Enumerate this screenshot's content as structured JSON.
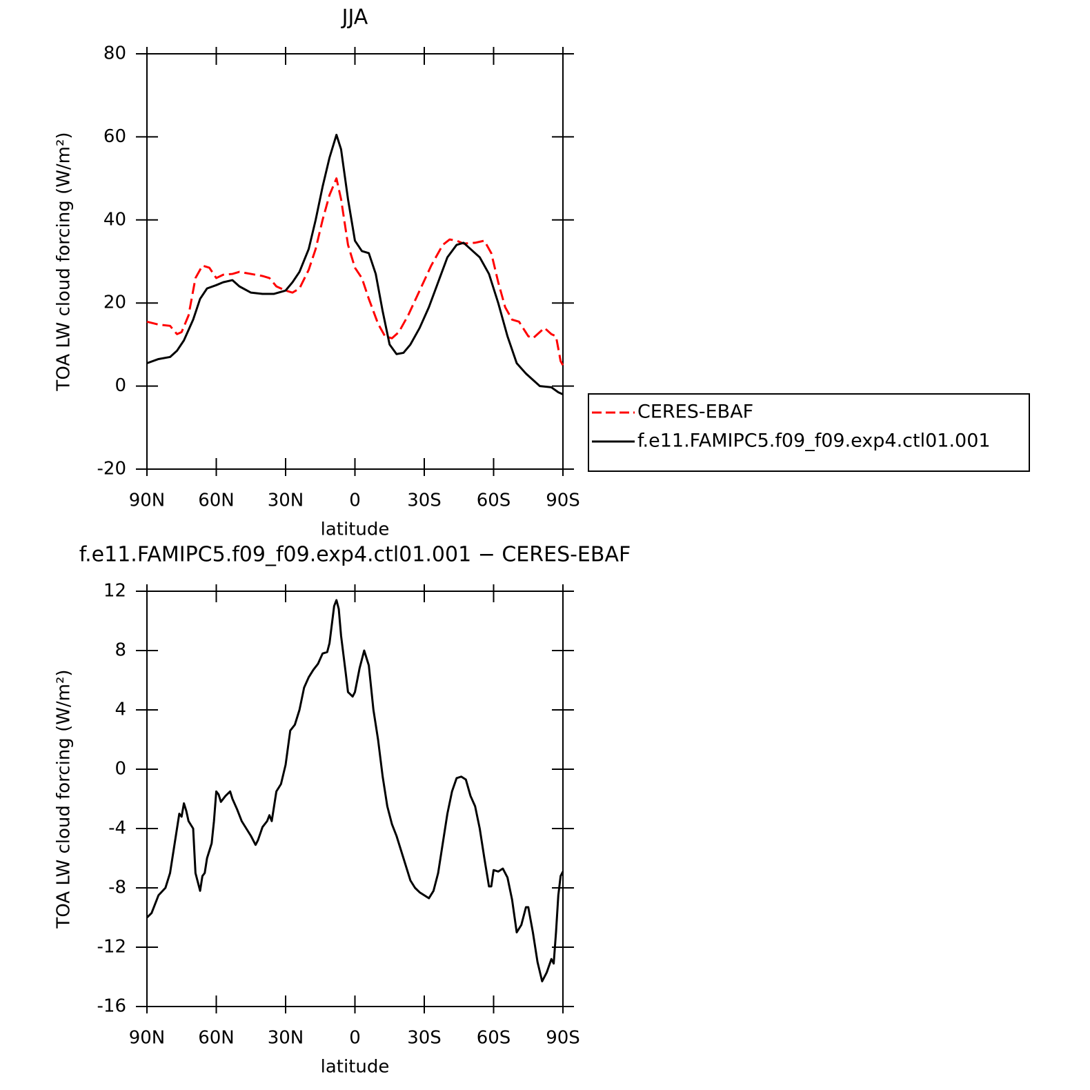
{
  "chart_data": [
    {
      "type": "line",
      "title": "JJA",
      "xlabel": "latitude",
      "ylabel": "TOA LW cloud forcing (W/m²)",
      "xlim": [
        90,
        -90
      ],
      "xticks": [
        {
          "value": 90,
          "label": "90N"
        },
        {
          "value": 60,
          "label": "60N"
        },
        {
          "value": 30,
          "label": "30N"
        },
        0,
        {
          "value": -30,
          "label": "30S"
        },
        {
          "value": -60,
          "label": "60S"
        },
        {
          "value": -90,
          "label": "90S"
        }
      ],
      "ylim": [
        -20,
        80
      ],
      "yticks": [
        -20,
        0,
        20,
        40,
        60,
        80
      ],
      "legend": "right",
      "series": [
        {
          "name": "CERES-EBAF",
          "color": "#ff0000",
          "dashed": true,
          "x": [
            90,
            85,
            80,
            77,
            75,
            72,
            69,
            66,
            63,
            60,
            57,
            53,
            50,
            45,
            40,
            37,
            34,
            30,
            27,
            24,
            20,
            17,
            14,
            11,
            8,
            6,
            3,
            0,
            -3,
            -6,
            -10,
            -13,
            -16,
            -19,
            -23,
            -28,
            -33,
            -38,
            -41,
            -44,
            -47,
            -52,
            -56,
            -59,
            -62,
            -65,
            -68,
            -71,
            -75,
            -77,
            -80,
            -82,
            -85,
            -87,
            -89,
            -90
          ],
          "values": [
            15.5,
            14.8,
            14.5,
            12.5,
            13,
            17,
            26,
            29,
            28.5,
            26,
            26.8,
            27,
            27.5,
            27,
            26.5,
            26,
            24,
            23,
            22.5,
            23.5,
            28,
            33,
            40,
            46,
            50,
            45,
            34,
            28.5,
            26,
            21,
            15,
            12,
            11.5,
            13,
            17,
            23,
            29,
            34,
            35.3,
            35,
            34.3,
            34.5,
            35,
            32,
            25,
            19,
            16,
            15.5,
            12,
            11.5,
            13,
            14,
            12.5,
            12,
            6,
            5
          ]
        },
        {
          "name": "f.e11.FAMIPC5.f09_f09.exp4.ctl01.001",
          "color": "#000000",
          "dashed": false,
          "x": [
            90,
            85,
            80,
            77,
            74,
            70,
            67,
            64,
            60,
            57,
            53,
            50,
            45,
            40,
            35,
            30,
            27,
            24,
            20,
            17,
            14,
            11,
            8,
            6,
            3,
            0,
            -3,
            -6,
            -9,
            -12,
            -15,
            -18,
            -21,
            -24,
            -28,
            -32,
            -36,
            -40,
            -44,
            -47,
            -50,
            -54,
            -58,
            -62,
            -66,
            -70,
            -74,
            -78,
            -80,
            -85,
            -88,
            -90
          ],
          "values": [
            5.5,
            6.5,
            7,
            8.5,
            11,
            16,
            21,
            23.5,
            24.3,
            25,
            25.5,
            24,
            22.5,
            22.2,
            22.2,
            23,
            25,
            27.5,
            33,
            40,
            48,
            55,
            60.5,
            57,
            45,
            35,
            32.5,
            32,
            27,
            18,
            10,
            7.7,
            8,
            10,
            14,
            19,
            25,
            31,
            34,
            34.5,
            33,
            31,
            27,
            20,
            12,
            5.5,
            3,
            1,
            0,
            -0.3,
            -1.5,
            -2
          ]
        }
      ]
    },
    {
      "type": "line",
      "title": "f.e11.FAMIPC5.f09_f09.exp4.ctl01.001 − CERES-EBAF",
      "xlabel": "latitude",
      "ylabel": "TOA LW cloud forcing (W/m²)",
      "xlim": [
        90,
        -90
      ],
      "xticks": [
        {
          "value": 90,
          "label": "90N"
        },
        {
          "value": 60,
          "label": "60N"
        },
        {
          "value": 30,
          "label": "30N"
        },
        0,
        {
          "value": -30,
          "label": "30S"
        },
        {
          "value": -60,
          "label": "60S"
        },
        {
          "value": -90,
          "label": "90S"
        }
      ],
      "ylim": [
        -16,
        12
      ],
      "yticks": [
        -16,
        -12,
        -8,
        -4,
        0,
        4,
        8,
        12
      ],
      "series": [
        {
          "color": "#000000",
          "dashed": false,
          "x": [
            90,
            88,
            85,
            82,
            80,
            78,
            76,
            75,
            74,
            73,
            72,
            70,
            69,
            67,
            66,
            65,
            64,
            63,
            62,
            61,
            60,
            59,
            58,
            56,
            54,
            53,
            51,
            49,
            47,
            45,
            43,
            42,
            40,
            38,
            37,
            36,
            34,
            32,
            30,
            28,
            26,
            24,
            22,
            20,
            18,
            16,
            14,
            12,
            11,
            9,
            8,
            7,
            6,
            4,
            3,
            1,
            0,
            -2,
            -4,
            -6,
            -8,
            -10,
            -12,
            -14,
            -16,
            -18,
            -20,
            -22,
            -24,
            -26,
            -28,
            -30,
            -32,
            -34,
            -36,
            -38,
            -40,
            -42,
            -44,
            -46,
            -48,
            -50,
            -52,
            -54,
            -56,
            -58,
            -59,
            -60,
            -62,
            -64,
            -66,
            -68,
            -70,
            -72,
            -74,
            -75,
            -77,
            -79,
            -81,
            -83,
            -85,
            -86,
            -87,
            -88,
            -89,
            -90
          ],
          "values": [
            -10,
            -9.7,
            -8.5,
            -8,
            -7,
            -5,
            -3,
            -3.2,
            -2.3,
            -2.8,
            -3.5,
            -4,
            -7,
            -8.2,
            -7.2,
            -7,
            -6,
            -5.5,
            -5,
            -3.5,
            -1.5,
            -1.7,
            -2.2,
            -1.8,
            -1.5,
            -2,
            -2.7,
            -3.5,
            -4,
            -4.5,
            -5.1,
            -4.8,
            -3.9,
            -3.5,
            -3.1,
            -3.5,
            -1.5,
            -1,
            0.3,
            2.6,
            3,
            4,
            5.5,
            6.2,
            6.7,
            7.1,
            7.8,
            7.9,
            8.5,
            11,
            11.4,
            10.8,
            9,
            6.5,
            5.2,
            4.9,
            5.2,
            6.8,
            8,
            7,
            4,
            2,
            -0.5,
            -2.5,
            -3.7,
            -4.5,
            -5.5,
            -6.5,
            -7.5,
            -8,
            -8.3,
            -8.5,
            -8.7,
            -8.2,
            -7,
            -5,
            -3,
            -1.5,
            -0.6,
            -0.5,
            -0.7,
            -1.8,
            -2.5,
            -4,
            -6,
            -7.9,
            -7.9,
            -6.8,
            -6.9,
            -6.7,
            -7.3,
            -8.8,
            -11,
            -10.5,
            -9.3,
            -9.3,
            -11,
            -13,
            -14.3,
            -13.7,
            -12.8,
            -13.1,
            -11,
            -8.5,
            -7.2,
            -6.9
          ]
        }
      ]
    }
  ]
}
